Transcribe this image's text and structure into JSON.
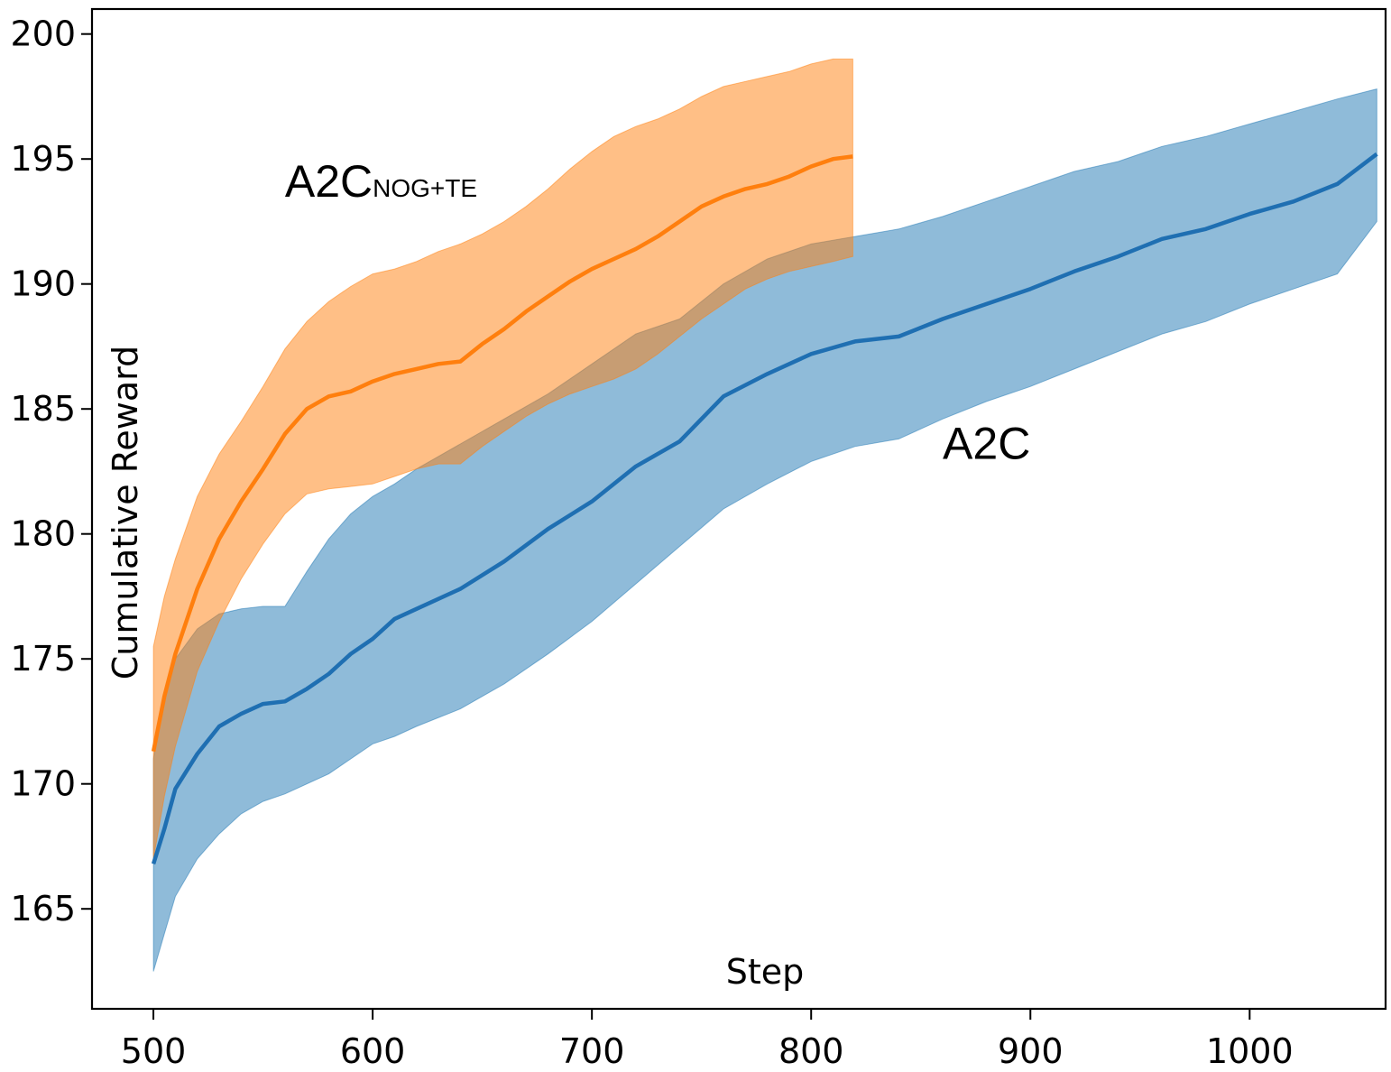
{
  "chart_data": {
    "type": "line",
    "title": "",
    "xlabel": "Step",
    "ylabel": "Cumulative Reward",
    "xlim": [
      472,
      1062
    ],
    "ylim": [
      161,
      201
    ],
    "xticks": [
      500,
      600,
      700,
      800,
      900,
      1000
    ],
    "yticks": [
      165,
      170,
      175,
      180,
      185,
      190,
      195,
      200
    ],
    "grid": false,
    "legend": "none",
    "annotations": [
      {
        "text": "A2C",
        "subscript": "NOG+TE",
        "series": "A2C_NOG+TE",
        "x": 560,
        "y": 193.5
      },
      {
        "text": "A2C",
        "subscript": "",
        "series": "A2C",
        "x": 860,
        "y": 183
      }
    ],
    "series": [
      {
        "name": "A2C",
        "color": "#1f6fb2",
        "fill_color": "#1f77b4",
        "x": [
          500,
          505,
          510,
          520,
          530,
          540,
          550,
          560,
          570,
          580,
          590,
          600,
          610,
          620,
          640,
          660,
          680,
          700,
          720,
          740,
          760,
          780,
          800,
          820,
          840,
          860,
          880,
          900,
          920,
          940,
          960,
          980,
          1000,
          1020,
          1040,
          1058
        ],
        "mean": [
          166.8,
          168.2,
          169.8,
          171.2,
          172.3,
          172.8,
          173.2,
          173.3,
          173.8,
          174.4,
          175.2,
          175.8,
          176.6,
          177.0,
          177.8,
          178.9,
          180.2,
          181.3,
          182.7,
          183.7,
          185.5,
          186.4,
          187.2,
          187.7,
          187.9,
          188.6,
          189.2,
          189.8,
          190.5,
          191.1,
          191.8,
          192.2,
          192.8,
          193.3,
          194.0,
          195.2
        ],
        "lower": [
          162.5,
          164.0,
          165.5,
          167.0,
          168.0,
          168.8,
          169.3,
          169.6,
          170.0,
          170.4,
          171.0,
          171.6,
          171.9,
          172.3,
          173.0,
          174.0,
          175.2,
          176.5,
          178.0,
          179.5,
          181.0,
          182.0,
          182.9,
          183.5,
          183.8,
          184.6,
          185.3,
          185.9,
          186.6,
          187.3,
          188.0,
          188.5,
          189.2,
          189.8,
          190.4,
          192.5
        ],
        "upper": [
          171.0,
          173.5,
          175.0,
          176.2,
          176.8,
          177.0,
          177.1,
          177.1,
          178.5,
          179.8,
          180.8,
          181.5,
          182.0,
          182.6,
          183.6,
          184.6,
          185.6,
          186.8,
          188.0,
          188.6,
          190.0,
          191.0,
          191.6,
          191.9,
          192.2,
          192.7,
          193.3,
          193.9,
          194.5,
          194.9,
          195.5,
          195.9,
          196.4,
          196.9,
          197.4,
          197.8
        ]
      },
      {
        "name": "A2C_NOG+TE",
        "color": "#ff7f0e",
        "fill_color": "#ff7f0e",
        "x": [
          500,
          505,
          510,
          520,
          530,
          540,
          550,
          560,
          570,
          580,
          590,
          600,
          610,
          620,
          630,
          640,
          650,
          660,
          670,
          680,
          690,
          700,
          710,
          720,
          730,
          740,
          750,
          760,
          770,
          780,
          790,
          800,
          810,
          819
        ],
        "mean": [
          171.3,
          173.5,
          175.2,
          177.8,
          179.8,
          181.3,
          182.6,
          184.0,
          185.0,
          185.5,
          185.7,
          186.1,
          186.4,
          186.6,
          186.8,
          186.9,
          187.6,
          188.2,
          188.9,
          189.5,
          190.1,
          190.6,
          191.0,
          191.4,
          191.9,
          192.5,
          193.1,
          193.5,
          193.8,
          194.0,
          194.3,
          194.7,
          195.0,
          195.1
        ],
        "lower": [
          167.0,
          169.5,
          171.5,
          174.5,
          176.5,
          178.2,
          179.6,
          180.8,
          181.6,
          181.8,
          181.9,
          182.0,
          182.3,
          182.6,
          182.8,
          182.8,
          183.5,
          184.1,
          184.7,
          185.2,
          185.6,
          185.9,
          186.2,
          186.6,
          187.2,
          187.9,
          188.6,
          189.2,
          189.8,
          190.2,
          190.5,
          190.7,
          190.9,
          191.1
        ],
        "upper": [
          175.5,
          177.5,
          179.0,
          181.5,
          183.2,
          184.5,
          185.9,
          187.4,
          188.5,
          189.3,
          189.9,
          190.4,
          190.6,
          190.9,
          191.3,
          191.6,
          192.0,
          192.5,
          193.1,
          193.8,
          194.6,
          195.3,
          195.9,
          196.3,
          196.6,
          197.0,
          197.5,
          197.9,
          198.1,
          198.3,
          198.5,
          198.8,
          199.0,
          199.0
        ]
      }
    ]
  }
}
